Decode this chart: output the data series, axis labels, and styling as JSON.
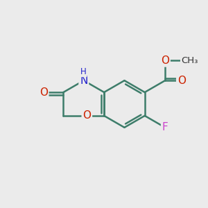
{
  "bg_color": "#ebebeb",
  "bond_color": "#3d7d6a",
  "bond_width": 1.8,
  "fig_size": [
    3.0,
    3.0
  ],
  "dpi": 100,
  "xlim": [
    0,
    10
  ],
  "ylim": [
    0,
    10
  ],
  "N_color": "#2222cc",
  "O_color": "#cc2200",
  "F_color": "#cc44cc",
  "C_color": "#333333"
}
